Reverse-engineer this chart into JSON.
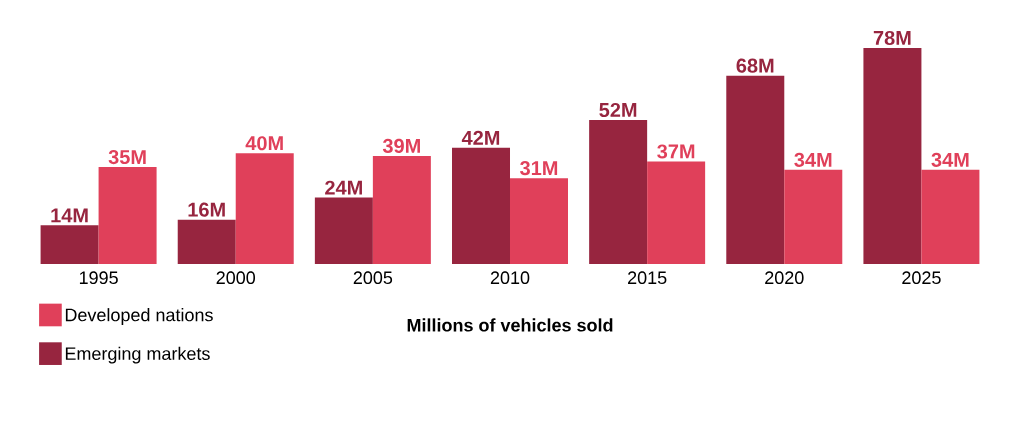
{
  "chart_data": {
    "type": "bar",
    "xlabel": "Millions of vehicles sold",
    "categories": [
      "1995",
      "2000",
      "2005",
      "2010",
      "2015",
      "2020",
      "2025"
    ],
    "series": [
      {
        "name": "Emerging markets",
        "color": "#97253f",
        "values": [
          14,
          16,
          24,
          42,
          52,
          68,
          78
        ],
        "value_labels": [
          "14M",
          "16M",
          "24M",
          "42M",
          "52M",
          "68M",
          "78M"
        ]
      },
      {
        "name": "Developed nations",
        "color": "#e0405a",
        "values": [
          35,
          40,
          39,
          31,
          37,
          34,
          34
        ],
        "value_labels": [
          "35M",
          "40M",
          "39M",
          "31M",
          "37M",
          "34M",
          "34M"
        ]
      }
    ],
    "legend": "bottom left"
  }
}
